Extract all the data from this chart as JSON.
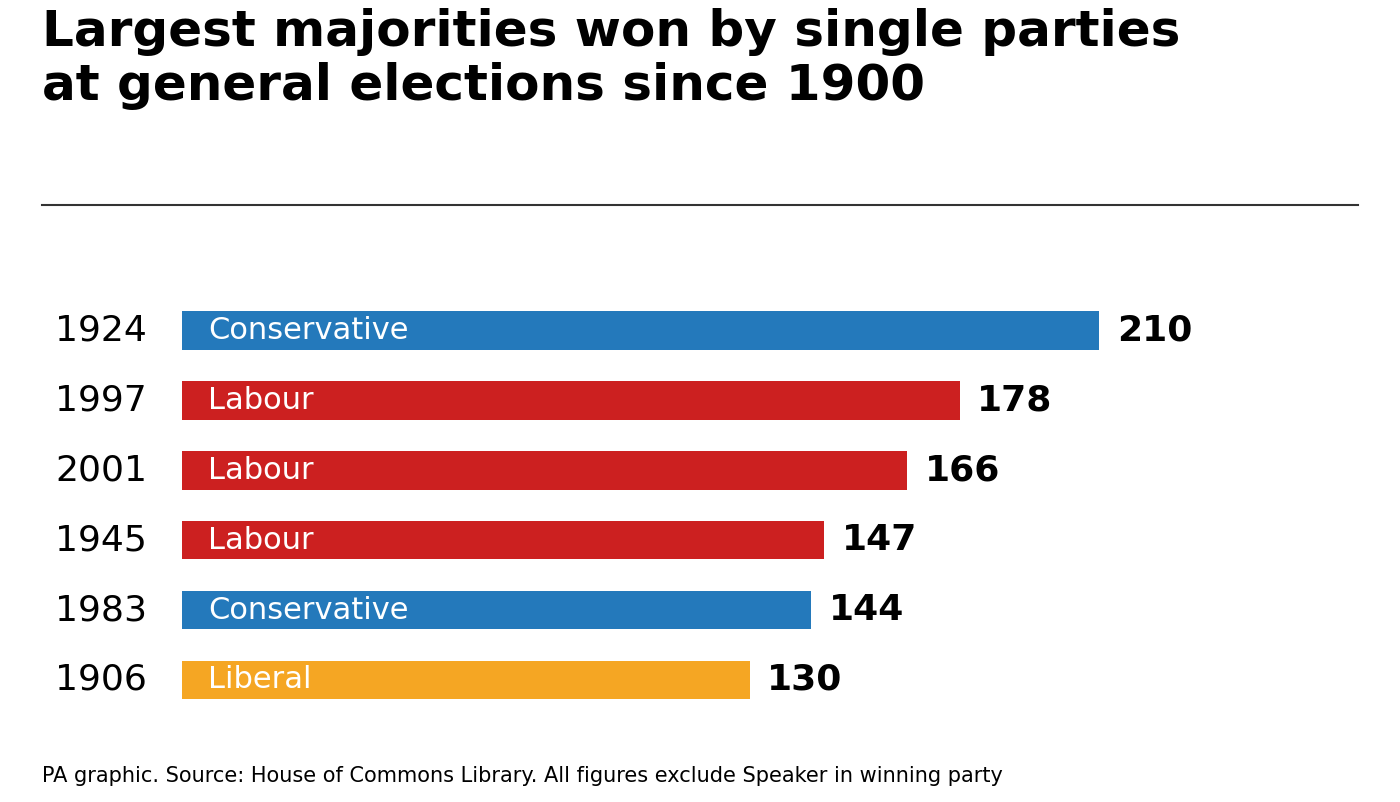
{
  "title": "Largest majorities won by single parties\nat general elections since 1900",
  "bars": [
    {
      "year": "1924",
      "party": "Conservative",
      "value": 210
    },
    {
      "year": "1997",
      "party": "Labour",
      "value": 178
    },
    {
      "year": "2001",
      "party": "Labour",
      "value": 166
    },
    {
      "year": "1945",
      "party": "Labour",
      "value": 147
    },
    {
      "year": "1983",
      "party": "Conservative",
      "value": 144
    },
    {
      "year": "1906",
      "party": "Liberal",
      "value": 130
    }
  ],
  "bar_colors": {
    "Conservative": "#2479BB",
    "Labour": "#CC2020",
    "Liberal": "#F5A623"
  },
  "footnote": "PA graphic. Source: House of Commons Library. All figures exclude Speaker in winning party",
  "background_color": "#FFFFFF",
  "title_fontsize": 36,
  "label_fontsize": 22,
  "value_fontsize": 26,
  "year_fontsize": 26,
  "footnote_fontsize": 15,
  "bar_height": 0.55,
  "xlim": [
    0,
    250
  ]
}
